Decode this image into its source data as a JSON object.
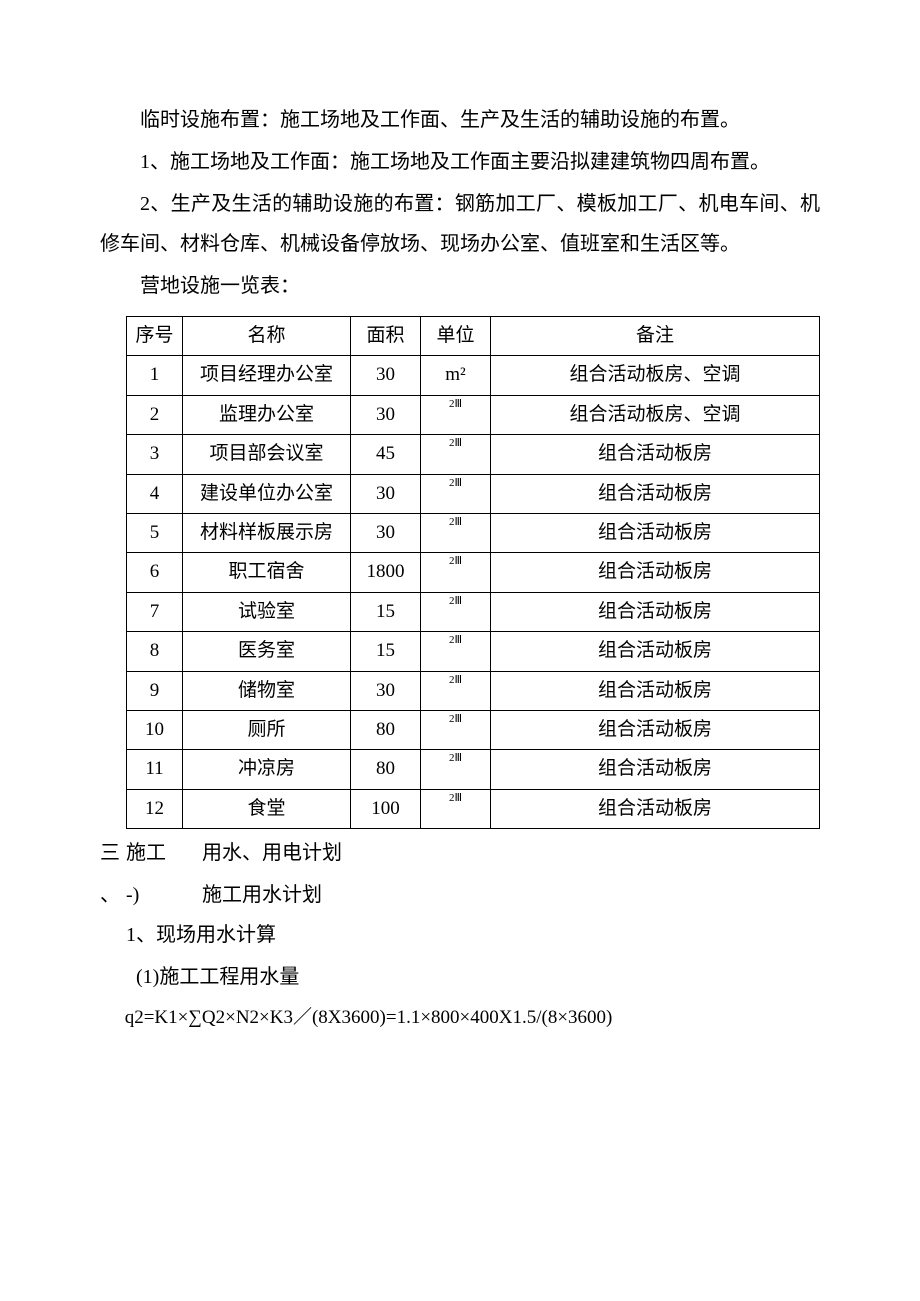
{
  "paragraphs": {
    "p1": "临时设施布置：施工场地及工作面、生产及生活的辅助设施的布置。",
    "p2": "1、施工场地及工作面：施工场地及工作面主要沿拟建建筑物四周布置。",
    "p3": "2、生产及生活的辅助设施的布置：钢筋加工厂、模板加工厂、机电车间、机修车间、材料仓库、机械设备停放场、现场办公室、值班室和生活区等。",
    "p4": "营地设施一览表："
  },
  "table": {
    "headers": {
      "seq": "序号",
      "name": "名称",
      "area": "面积",
      "unit": "单位",
      "remark": "备注"
    },
    "rows": [
      {
        "seq": "1",
        "name": "项目经理办公室",
        "area": "30",
        "unit": "m²",
        "unit_small": false,
        "remark": "组合活动板房、空调"
      },
      {
        "seq": "2",
        "name": "监理办公室",
        "area": "30",
        "unit": "2Ⅲ",
        "unit_small": true,
        "remark": "组合活动板房、空调"
      },
      {
        "seq": "3",
        "name": "项目部会议室",
        "area": "45",
        "unit": "2Ⅲ",
        "unit_small": true,
        "remark": "组合活动板房"
      },
      {
        "seq": "4",
        "name": "建设单位办公室",
        "area": "30",
        "unit": "2Ⅲ",
        "unit_small": true,
        "remark": "组合活动板房"
      },
      {
        "seq": "5",
        "name": "材料样板展示房",
        "area": "30",
        "unit": "2Ⅲ",
        "unit_small": true,
        "remark": "组合活动板房"
      },
      {
        "seq": "6",
        "name": "职工宿舍",
        "area": "1800",
        "unit": "2Ⅲ",
        "unit_small": true,
        "remark": "组合活动板房"
      },
      {
        "seq": "7",
        "name": "试验室",
        "area": "15",
        "unit": "2Ⅲ",
        "unit_small": true,
        "remark": "组合活动板房"
      },
      {
        "seq": "8",
        "name": "医务室",
        "area": "15",
        "unit": "2Ⅲ",
        "unit_small": true,
        "remark": "组合活动板房"
      },
      {
        "seq": "9",
        "name": "储物室",
        "area": "30",
        "unit": "2Ⅲ",
        "unit_small": true,
        "remark": "组合活动板房"
      },
      {
        "seq": "10",
        "name": "厕所",
        "area": "80",
        "unit": "2Ⅲ",
        "unit_small": true,
        "remark": "组合活动板房"
      },
      {
        "seq": "11",
        "name": "冲凉房",
        "area": "80",
        "unit": "2Ⅲ",
        "unit_small": true,
        "remark": "组合活动板房"
      },
      {
        "seq": "12",
        "name": "食堂",
        "area": "100",
        "unit": "2Ⅲ",
        "unit_small": true,
        "remark": "组合活动板房"
      }
    ]
  },
  "sections": {
    "s3_marker": "三",
    "s3_marker2": "、",
    "s3_pre": "施工",
    "s3_title": "用水、用电计划",
    "s3_1_marker": "-)",
    "s3_1_title": "施工用水计划",
    "s3_1_1": "1、现场用水计算",
    "s3_1_1_1": "(1)施工工程用水量",
    "formula": "q2=K1×∑Q2×N2×K3／(8X3600)=1.1×800×400X1.5/(8×3600)"
  },
  "styling": {
    "background_color": "#ffffff",
    "text_color": "#000000",
    "border_color": "#000000",
    "font_size_body": 20,
    "font_size_table": 19,
    "font_size_unit_small": 11,
    "line_height": 2.0,
    "font_family": "SimSun"
  }
}
